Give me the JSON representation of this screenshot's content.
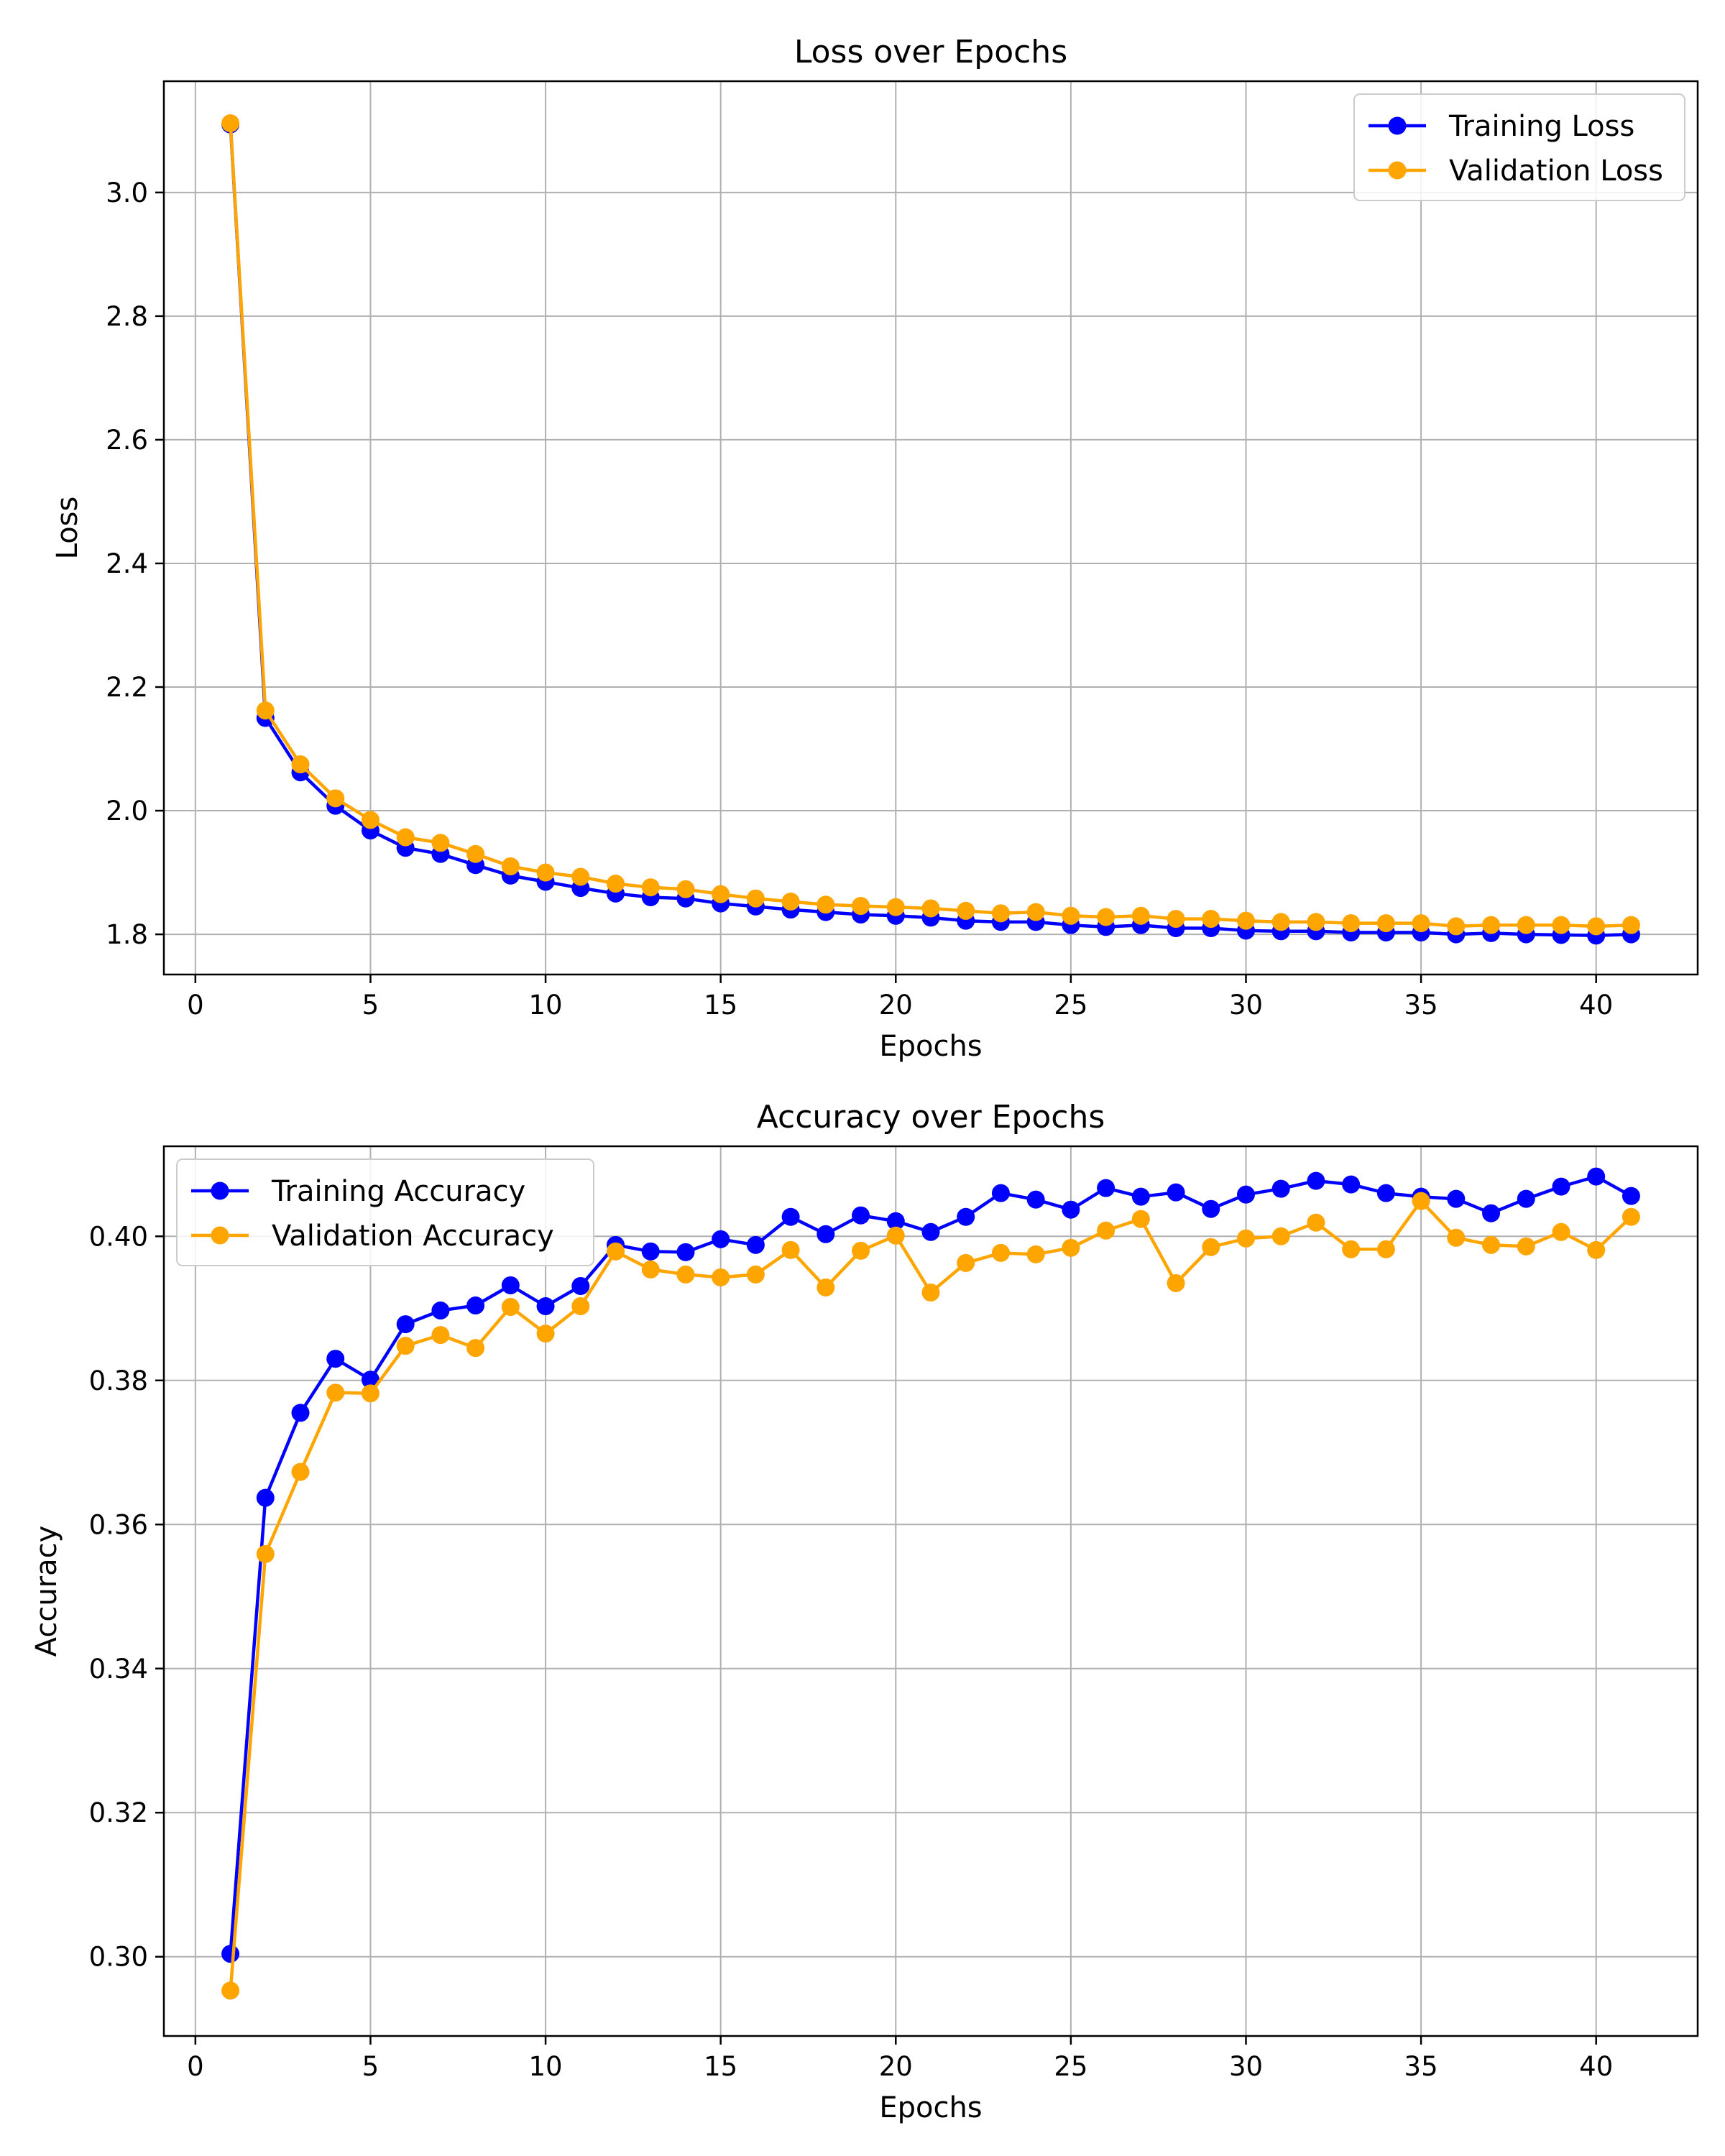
{
  "chart_data": [
    {
      "type": "line",
      "title": "Loss over Epochs",
      "xlabel": "Epochs",
      "ylabel": "Loss",
      "xlim": [
        -0.9,
        42.9
      ],
      "ylim": [
        1.735,
        3.18
      ],
      "xticks": [
        0,
        5,
        10,
        15,
        20,
        25,
        30,
        35,
        40
      ],
      "xtick_labels": [
        "0",
        "5",
        "10",
        "15",
        "20",
        "25",
        "30",
        "35",
        "40"
      ],
      "yticks": [
        1.8,
        2.0,
        2.2,
        2.4,
        2.6,
        2.8,
        3.0
      ],
      "ytick_labels": [
        "1.8",
        "2.0",
        "2.2",
        "2.4",
        "2.6",
        "2.8",
        "3.0"
      ],
      "grid": true,
      "legend_position": "upper-right",
      "x": [
        1,
        2,
        3,
        4,
        5,
        6,
        7,
        8,
        9,
        10,
        11,
        12,
        13,
        14,
        15,
        16,
        17,
        18,
        19,
        20,
        21,
        22,
        23,
        24,
        25,
        26,
        27,
        28,
        29,
        30,
        31,
        32,
        33,
        34,
        35,
        36,
        37,
        38,
        39,
        40,
        41
      ],
      "series": [
        {
          "name": "Training Loss",
          "color": "#0000ff",
          "values": [
            3.11,
            2.15,
            2.062,
            2.008,
            1.968,
            1.94,
            1.93,
            1.912,
            1.895,
            1.885,
            1.875,
            1.866,
            1.86,
            1.858,
            1.85,
            1.845,
            1.84,
            1.836,
            1.832,
            1.83,
            1.827,
            1.822,
            1.82,
            1.82,
            1.815,
            1.812,
            1.815,
            1.81,
            1.81,
            1.806,
            1.805,
            1.805,
            1.803,
            1.803,
            1.803,
            1.8,
            1.802,
            1.8,
            1.799,
            1.798,
            1.8
          ]
        },
        {
          "name": "Validation Loss",
          "color": "#ffa500",
          "values": [
            3.112,
            2.162,
            2.075,
            2.02,
            1.985,
            1.957,
            1.948,
            1.93,
            1.91,
            1.9,
            1.893,
            1.882,
            1.876,
            1.873,
            1.865,
            1.858,
            1.853,
            1.848,
            1.846,
            1.844,
            1.842,
            1.838,
            1.834,
            1.836,
            1.83,
            1.828,
            1.83,
            1.825,
            1.825,
            1.822,
            1.82,
            1.82,
            1.818,
            1.818,
            1.818,
            1.813,
            1.815,
            1.815,
            1.815,
            1.813,
            1.815
          ]
        }
      ]
    },
    {
      "type": "line",
      "title": "Accuracy over Epochs",
      "xlabel": "Epochs",
      "ylabel": "Accuracy",
      "xlim": [
        -0.9,
        42.9
      ],
      "ylim": [
        0.289,
        0.4125
      ],
      "xticks": [
        0,
        5,
        10,
        15,
        20,
        25,
        30,
        35,
        40
      ],
      "xtick_labels": [
        "0",
        "5",
        "10",
        "15",
        "20",
        "25",
        "30",
        "35",
        "40"
      ],
      "yticks": [
        0.3,
        0.32,
        0.34,
        0.36,
        0.38,
        0.4
      ],
      "ytick_labels": [
        "0.30",
        "0.32",
        "0.34",
        "0.36",
        "0.38",
        "0.40"
      ],
      "grid": true,
      "legend_position": "upper-left",
      "x": [
        1,
        2,
        3,
        4,
        5,
        6,
        7,
        8,
        9,
        10,
        11,
        12,
        13,
        14,
        15,
        16,
        17,
        18,
        19,
        20,
        21,
        22,
        23,
        24,
        25,
        26,
        27,
        28,
        29,
        30,
        31,
        32,
        33,
        34,
        35,
        36,
        37,
        38,
        39,
        40,
        41
      ],
      "series": [
        {
          "name": "Training Accuracy",
          "color": "#0000ff",
          "values": [
            0.3004,
            0.3637,
            0.3755,
            0.383,
            0.3801,
            0.3878,
            0.3897,
            0.3904,
            0.3932,
            0.3903,
            0.3931,
            0.3988,
            0.3979,
            0.3978,
            0.3996,
            0.3988,
            0.4027,
            0.4003,
            0.4029,
            0.4021,
            0.4006,
            0.4027,
            0.406,
            0.4051,
            0.4037,
            0.4067,
            0.4055,
            0.4061,
            0.4038,
            0.4058,
            0.4066,
            0.4077,
            0.4072,
            0.406,
            0.4055,
            0.4052,
            0.4032,
            0.4052,
            0.4069,
            0.4083,
            0.4056
          ]
        },
        {
          "name": "Validation Accuracy",
          "color": "#ffa500",
          "values": [
            0.2953,
            0.3559,
            0.3673,
            0.3783,
            0.3782,
            0.3848,
            0.3863,
            0.3845,
            0.3902,
            0.3865,
            0.3903,
            0.3979,
            0.3954,
            0.3947,
            0.3943,
            0.3947,
            0.3981,
            0.3929,
            0.398,
            0.4001,
            0.3922,
            0.3963,
            0.3977,
            0.3975,
            0.3984,
            0.4008,
            0.4024,
            0.3935,
            0.3985,
            0.3997,
            0.4,
            0.4019,
            0.3982,
            0.3982,
            0.4049,
            0.3998,
            0.3988,
            0.3986,
            0.4006,
            0.3981,
            0.4027
          ]
        }
      ]
    }
  ]
}
